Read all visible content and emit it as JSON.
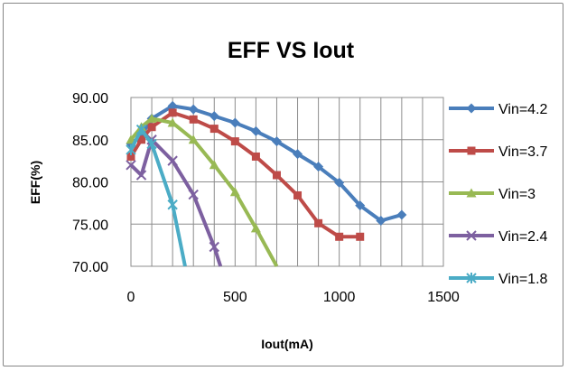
{
  "chart_data": {
    "type": "line",
    "title": "EFF VS Iout",
    "xlabel": "Iout(mA)",
    "ylabel": "EFF(%)",
    "xlim": [
      0,
      1500
    ],
    "ylim": [
      70,
      90
    ],
    "x_ticks": [
      "0",
      "500",
      "1000",
      "1500"
    ],
    "y_ticks": [
      "90.00",
      "85.00",
      "80.00",
      "75.00",
      "70.00"
    ],
    "grid": true,
    "legend_position": "right",
    "series": [
      {
        "name": "Vin=4.2",
        "color": "#4a7ebb",
        "marker": "diamond",
        "points": [
          [
            0,
            84.5
          ],
          [
            50,
            85.5
          ],
          [
            100,
            87.5
          ],
          [
            200,
            89.0
          ],
          [
            300,
            88.6
          ],
          [
            400,
            87.8
          ],
          [
            500,
            87.0
          ],
          [
            600,
            86.0
          ],
          [
            700,
            84.8
          ],
          [
            800,
            83.3
          ],
          [
            900,
            81.8
          ],
          [
            1000,
            79.9
          ],
          [
            1100,
            77.2
          ],
          [
            1200,
            75.4
          ],
          [
            1300,
            76.1
          ]
        ]
      },
      {
        "name": "Vin=3.7",
        "color": "#be4b48",
        "marker": "square",
        "points": [
          [
            0,
            83.0
          ],
          [
            50,
            85.0
          ],
          [
            100,
            86.5
          ],
          [
            200,
            88.2
          ],
          [
            300,
            87.4
          ],
          [
            400,
            86.3
          ],
          [
            500,
            84.8
          ],
          [
            600,
            83.0
          ],
          [
            700,
            80.8
          ],
          [
            800,
            78.4
          ],
          [
            900,
            75.1
          ],
          [
            1000,
            73.5
          ],
          [
            1100,
            73.5
          ]
        ]
      },
      {
        "name": "Vin=3",
        "color": "#98b954",
        "marker": "triangle",
        "points": [
          [
            0,
            85.0
          ],
          [
            50,
            86.5
          ],
          [
            100,
            87.5
          ],
          [
            200,
            87.0
          ],
          [
            300,
            85.0
          ],
          [
            400,
            82.0
          ],
          [
            500,
            78.8
          ],
          [
            600,
            74.5
          ],
          [
            700,
            70.0
          ]
        ]
      },
      {
        "name": "Vin=2.4",
        "color": "#7d60a0",
        "marker": "x",
        "points": [
          [
            0,
            82.0
          ],
          [
            50,
            80.8
          ],
          [
            100,
            85.0
          ],
          [
            200,
            82.5
          ],
          [
            300,
            78.5
          ],
          [
            400,
            72.3
          ],
          [
            430,
            70.0
          ]
        ]
      },
      {
        "name": "Vin=1.8",
        "color": "#4bacc6",
        "marker": "star",
        "points": [
          [
            0,
            83.8
          ],
          [
            50,
            86.2
          ],
          [
            100,
            84.5
          ],
          [
            200,
            77.3
          ],
          [
            260,
            70.0
          ]
        ]
      }
    ]
  }
}
